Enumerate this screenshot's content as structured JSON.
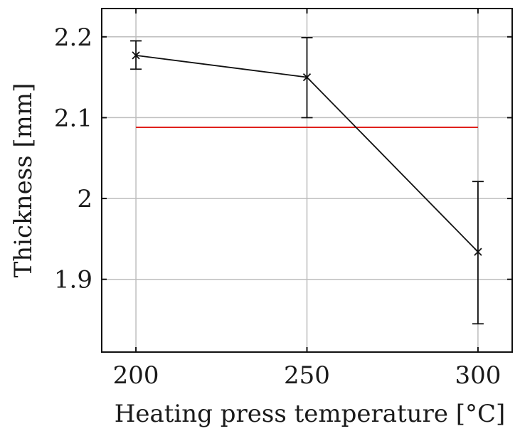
{
  "chart_data": {
    "type": "line",
    "xlabel": "Heating press temperature [°C]",
    "ylabel": "Thickness [mm]",
    "xlim": [
      190,
      310
    ],
    "ylim": [
      1.81,
      2.235
    ],
    "x_ticks": [
      200,
      250,
      300
    ],
    "x_tick_labels": [
      "200",
      "250",
      "300"
    ],
    "y_ticks": [
      1.9,
      2.0,
      2.1,
      2.2
    ],
    "y_tick_labels": [
      "1.9",
      "2",
      "2.1",
      "2.2"
    ],
    "grid": true,
    "legend": "none",
    "series": [
      {
        "x": [
          200,
          250,
          300
        ],
        "y": [
          2.177,
          2.15,
          1.934
        ],
        "err_low": [
          2.16,
          2.1,
          1.845
        ],
        "err_high": [
          2.195,
          2.199,
          2.021
        ],
        "marker": "x",
        "color": "#111111"
      }
    ],
    "reference_line": {
      "y": 2.088,
      "x_range": [
        200,
        300
      ],
      "color": "#e0201c"
    }
  }
}
